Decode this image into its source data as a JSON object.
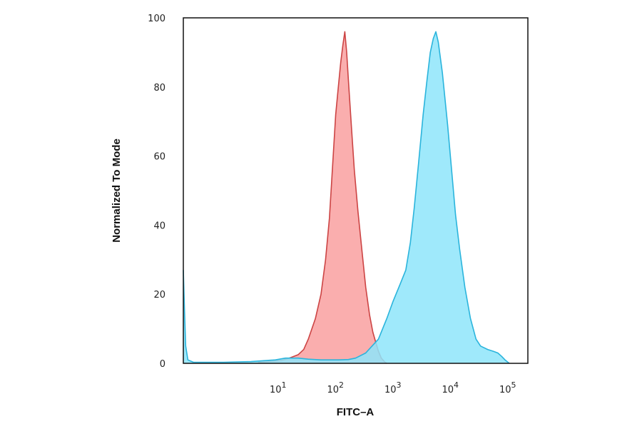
{
  "chart_data": {
    "type": "area",
    "title": "",
    "xlabel": "FITC–A",
    "ylabel": "Normalized To Mode",
    "x_scale": "log",
    "xlim": [
      0.2,
      200000
    ],
    "ylim": [
      0,
      100
    ],
    "y_ticks": [
      {
        "value": 0,
        "label": "0"
      },
      {
        "value": 20,
        "label": "20"
      },
      {
        "value": 40,
        "label": "40"
      },
      {
        "value": 60,
        "label": "60"
      },
      {
        "value": 80,
        "label": "80"
      },
      {
        "value": 100,
        "label": "100"
      }
    ],
    "x_ticks": [
      {
        "value": 10,
        "base": "10",
        "exp": "1"
      },
      {
        "value": 100,
        "base": "10",
        "exp": "2"
      },
      {
        "value": 1000,
        "base": "10",
        "exp": "3"
      },
      {
        "value": 10000,
        "base": "10",
        "exp": "4"
      },
      {
        "value": 100000,
        "base": "10",
        "exp": "5"
      }
    ],
    "grid": false,
    "legend": "none",
    "series": [
      {
        "fill": "#f9a0a0",
        "stroke": "#cc4444",
        "points": [
          [
            4,
            0.3
          ],
          [
            10,
            0.8
          ],
          [
            14,
            1.5
          ],
          [
            20,
            2.5
          ],
          [
            25,
            4
          ],
          [
            30,
            7
          ],
          [
            40,
            13
          ],
          [
            50,
            20
          ],
          [
            60,
            30
          ],
          [
            70,
            42
          ],
          [
            80,
            58
          ],
          [
            90,
            72
          ],
          [
            100,
            80
          ],
          [
            110,
            87
          ],
          [
            120,
            92
          ],
          [
            130,
            96
          ],
          [
            140,
            90
          ],
          [
            150,
            82
          ],
          [
            170,
            68
          ],
          [
            190,
            56
          ],
          [
            220,
            44
          ],
          [
            260,
            32
          ],
          [
            300,
            22
          ],
          [
            350,
            14
          ],
          [
            400,
            9
          ],
          [
            450,
            6
          ],
          [
            500,
            3.5
          ],
          [
            560,
            1.5
          ],
          [
            650,
            0.3
          ],
          [
            700,
            0
          ]
        ]
      },
      {
        "fill": "#8ee5fa",
        "stroke": "#2ab4dc",
        "points": [
          [
            0.2,
            27
          ],
          [
            0.21,
            15
          ],
          [
            0.22,
            5
          ],
          [
            0.24,
            1
          ],
          [
            0.3,
            0.3
          ],
          [
            1,
            0.3
          ],
          [
            3,
            0.5
          ],
          [
            8,
            1
          ],
          [
            12,
            1.5
          ],
          [
            20,
            1.5
          ],
          [
            30,
            1.2
          ],
          [
            50,
            1
          ],
          [
            100,
            1
          ],
          [
            150,
            1.1
          ],
          [
            200,
            1.5
          ],
          [
            300,
            3
          ],
          [
            500,
            7
          ],
          [
            700,
            13
          ],
          [
            900,
            18
          ],
          [
            1200,
            23
          ],
          [
            1500,
            27
          ],
          [
            1800,
            35
          ],
          [
            2100,
            45
          ],
          [
            2500,
            58
          ],
          [
            3000,
            72
          ],
          [
            3500,
            82
          ],
          [
            4000,
            90
          ],
          [
            4500,
            94
          ],
          [
            5000,
            96
          ],
          [
            5500,
            93
          ],
          [
            6500,
            84
          ],
          [
            8000,
            69
          ],
          [
            9500,
            55
          ],
          [
            11000,
            43
          ],
          [
            13000,
            33
          ],
          [
            16000,
            22
          ],
          [
            20000,
            13
          ],
          [
            25000,
            7
          ],
          [
            30000,
            5
          ],
          [
            40000,
            4
          ],
          [
            50000,
            3.5
          ],
          [
            60000,
            3
          ],
          [
            70000,
            2
          ],
          [
            80000,
            1
          ],
          [
            90000,
            0.3
          ],
          [
            95000,
            0
          ]
        ]
      }
    ]
  }
}
